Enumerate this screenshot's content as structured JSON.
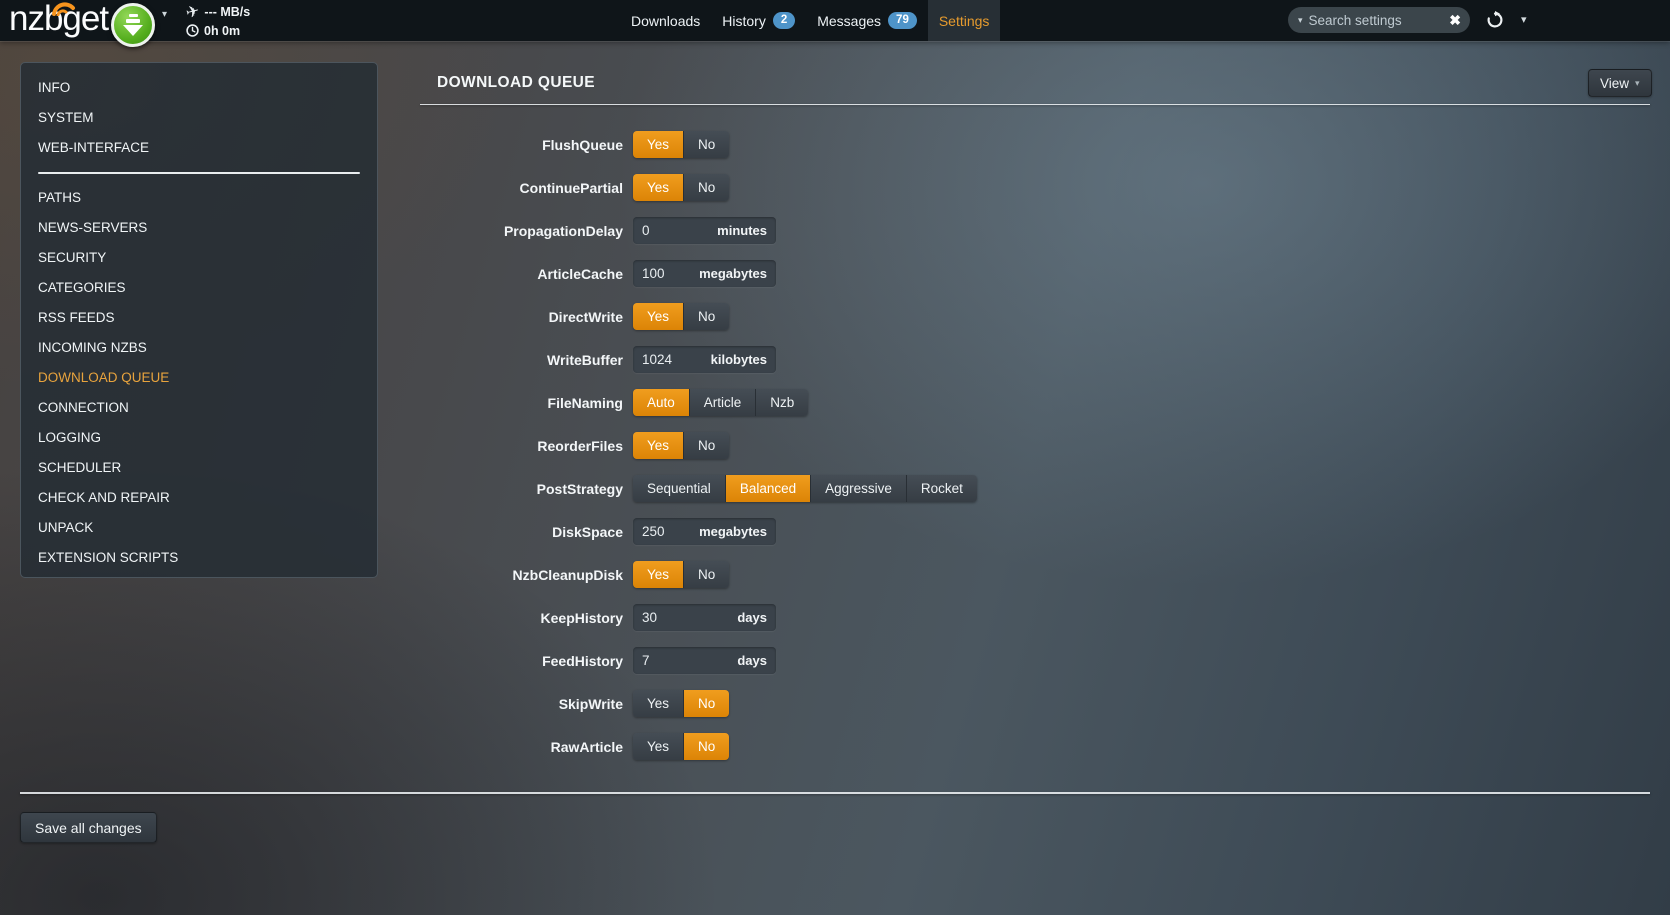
{
  "navbar": {
    "logo": "nzbget",
    "status": {
      "speed": "--- MB/s",
      "time": "0h 0m"
    },
    "tabs": [
      {
        "label": "Downloads",
        "badge": null,
        "active": false
      },
      {
        "label": "History",
        "badge": "2",
        "active": false
      },
      {
        "label": "Messages",
        "badge": "79",
        "active": false
      },
      {
        "label": "Settings",
        "badge": null,
        "active": true
      }
    ],
    "search": {
      "placeholder": "Search settings"
    }
  },
  "sidebar": {
    "active": "DOWNLOAD QUEUE",
    "sections": [
      [
        "INFO",
        "SYSTEM",
        "WEB-INTERFACE"
      ],
      [
        "PATHS",
        "NEWS-SERVERS",
        "SECURITY",
        "CATEGORIES",
        "RSS FEEDS",
        "INCOMING NZBS",
        "DOWNLOAD QUEUE",
        "CONNECTION",
        "LOGGING",
        "SCHEDULER",
        "CHECK AND REPAIR",
        "UNPACK",
        "EXTENSION SCRIPTS"
      ]
    ]
  },
  "content": {
    "title": "DOWNLOAD QUEUE",
    "view_button": "View",
    "save_button": "Save all changes",
    "rows": [
      {
        "label": "FlushQueue",
        "type": "toggle",
        "options": [
          "Yes",
          "No"
        ],
        "selected": "Yes"
      },
      {
        "label": "ContinuePartial",
        "type": "toggle",
        "options": [
          "Yes",
          "No"
        ],
        "selected": "Yes"
      },
      {
        "label": "PropagationDelay",
        "type": "input",
        "value": "0",
        "unit": "minutes"
      },
      {
        "label": "ArticleCache",
        "type": "input",
        "value": "100",
        "unit": "megabytes"
      },
      {
        "label": "DirectWrite",
        "type": "toggle",
        "options": [
          "Yes",
          "No"
        ],
        "selected": "Yes"
      },
      {
        "label": "WriteBuffer",
        "type": "input",
        "value": "1024",
        "unit": "kilobytes"
      },
      {
        "label": "FileNaming",
        "type": "toggle",
        "options": [
          "Auto",
          "Article",
          "Nzb"
        ],
        "selected": "Auto"
      },
      {
        "label": "ReorderFiles",
        "type": "toggle",
        "options": [
          "Yes",
          "No"
        ],
        "selected": "Yes"
      },
      {
        "label": "PostStrategy",
        "type": "toggle",
        "options": [
          "Sequential",
          "Balanced",
          "Aggressive",
          "Rocket"
        ],
        "selected": "Balanced"
      },
      {
        "label": "DiskSpace",
        "type": "input",
        "value": "250",
        "unit": "megabytes"
      },
      {
        "label": "NzbCleanupDisk",
        "type": "toggle",
        "options": [
          "Yes",
          "No"
        ],
        "selected": "Yes"
      },
      {
        "label": "KeepHistory",
        "type": "input",
        "value": "30",
        "unit": "days"
      },
      {
        "label": "FeedHistory",
        "type": "input",
        "value": "7",
        "unit": "days"
      },
      {
        "label": "SkipWrite",
        "type": "toggle",
        "options": [
          "Yes",
          "No"
        ],
        "selected": "No"
      },
      {
        "label": "RawArticle",
        "type": "toggle",
        "options": [
          "Yes",
          "No"
        ],
        "selected": "No"
      }
    ]
  },
  "colors": {
    "accent_orange": "#e78f12",
    "active_link_orange": "#e8a33d",
    "badge_blue": "#4e94c9",
    "logo_green": "#55ae1e"
  }
}
